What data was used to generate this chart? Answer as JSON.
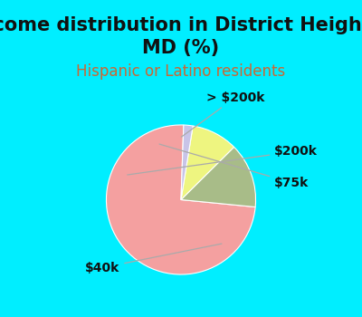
{
  "title": "Income distribution in District Heights,\nMD (%)",
  "subtitle": "Hispanic or Latino residents",
  "title_fontsize": 15,
  "subtitle_fontsize": 12,
  "title_color": "#111111",
  "subtitle_color": "#cc6633",
  "bg_cyan": "#00eeff",
  "bg_chart": "#e8f5ee",
  "slices": [
    {
      "label": "$40k",
      "value": 74,
      "color": "#f4a0a0"
    },
    {
      "label": "$200k",
      "value": 14,
      "color": "#a8bc88"
    },
    {
      "label": "$75k",
      "value": 10,
      "color": "#eef580"
    },
    {
      "label": "> $200k",
      "value": 2,
      "color": "#c8c4e8"
    }
  ],
  "startangle": 88,
  "label_fontsize": 10
}
